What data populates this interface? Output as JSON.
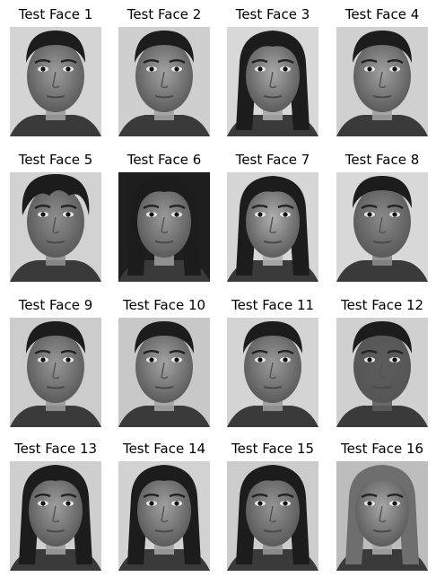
{
  "grid": {
    "faces": [
      {
        "title": "Test Face 1",
        "hair": "short-dark",
        "bg": "#d4d4d4",
        "skin": "#9c9c9c",
        "gender": "m"
      },
      {
        "title": "Test Face 2",
        "hair": "short-dark",
        "bg": "#cfcfcf",
        "skin": "#a2a2a2",
        "gender": "m"
      },
      {
        "title": "Test Face 3",
        "hair": "long-dark",
        "bg": "#d8d8d8",
        "skin": "#a8a8a8",
        "gender": "f"
      },
      {
        "title": "Test Face 4",
        "hair": "short-dark",
        "bg": "#d0d0d0",
        "skin": "#a0a0a0",
        "gender": "m"
      },
      {
        "title": "Test Face 5",
        "hair": "curly-dark",
        "bg": "#d2d2d2",
        "skin": "#8e8e8e",
        "gender": "m"
      },
      {
        "title": "Test Face 6",
        "hair": "long-dark",
        "bg": "#1e1e1e",
        "skin": "#9a9a9a",
        "gender": "f"
      },
      {
        "title": "Test Face 7",
        "hair": "long-dark",
        "bg": "#d6d6d6",
        "skin": "#b0b0b0",
        "gender": "f"
      },
      {
        "title": "Test Face 8",
        "hair": "short-dark",
        "bg": "#d8d8d8",
        "skin": "#8a8a8a",
        "gender": "m"
      },
      {
        "title": "Test Face 9",
        "hair": "short-dark",
        "bg": "#cccccc",
        "skin": "#989898",
        "gender": "m"
      },
      {
        "title": "Test Face 10",
        "hair": "short-dark",
        "bg": "#c8c8c8",
        "skin": "#a4a4a4",
        "gender": "m"
      },
      {
        "title": "Test Face 11",
        "hair": "short-dark",
        "bg": "#d4d4d4",
        "skin": "#9a9a9a",
        "gender": "m"
      },
      {
        "title": "Test Face 12",
        "hair": "short-dark",
        "bg": "#d0d0d0",
        "skin": "#5c5c5c",
        "gender": "m"
      },
      {
        "title": "Test Face 13",
        "hair": "long-dark",
        "bg": "#cfcfcf",
        "skin": "#9e9e9e",
        "gender": "f"
      },
      {
        "title": "Test Face 14",
        "hair": "long-dark",
        "bg": "#d2d2d2",
        "skin": "#a0a0a0",
        "gender": "f"
      },
      {
        "title": "Test Face 15",
        "hair": "long-dark",
        "bg": "#cccccc",
        "skin": "#949494",
        "gender": "f"
      },
      {
        "title": "Test Face 16",
        "hair": "long-light",
        "bg": "#bdbdbd",
        "skin": "#a6a6a6",
        "gender": "f"
      }
    ]
  }
}
